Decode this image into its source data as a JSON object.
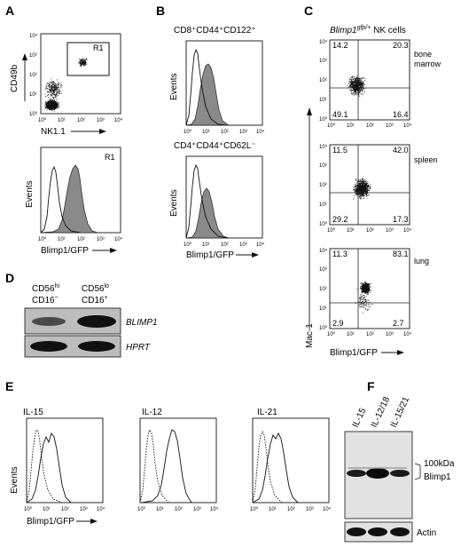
{
  "panels": [
    "A",
    "B",
    "C",
    "D",
    "E",
    "F"
  ],
  "axis_ticks": [
    "10⁰",
    "10¹",
    "10²",
    "10³",
    "10⁴"
  ],
  "panelA": {
    "ylabel": "CD49b",
    "xlabel": "NK1.1",
    "gate": "R1",
    "hist_ylabel": "Events",
    "hist_gate": "R1",
    "hist_xlabel": "Blimp1/GFP"
  },
  "panelB": {
    "title1": "CD8⁺CD44⁺CD122⁺",
    "title2": "CD4⁺CD44⁺CD62L⁻",
    "ylabel": "Events",
    "xlabel": "Blimp1/GFP"
  },
  "panelC": {
    "title_gene": "Blimp1",
    "title_sup": "gfp/+",
    "title_rest": " NK cells",
    "ylabel": "Mac-1",
    "xlabel": "Blimp1/GFP",
    "plots": [
      {
        "tissue": [
          "bone",
          "marrow"
        ],
        "q": [
          "14.2",
          "20.3",
          "49.1",
          "16.4"
        ]
      },
      {
        "tissue": [
          "spleen"
        ],
        "q": [
          "11.5",
          "42.0",
          "29.2",
          "17.3"
        ]
      },
      {
        "tissue": [
          "lung"
        ],
        "q": [
          "11.3",
          "83.1",
          "2.9",
          "2.7"
        ]
      }
    ]
  },
  "panelD": {
    "col1_a": "CD56",
    "col1_a_sup": "hi",
    "col1_b": "CD16",
    "col1_b_sup": "−",
    "col2_a": "CD56",
    "col2_a_sup": "lo",
    "col2_b": "CD16",
    "col2_b_sup": "+",
    "band1": "BLIMP1",
    "band2": "HPRT"
  },
  "panelE": {
    "ylabel": "Events",
    "xlabel": "Blimp1/GFP",
    "conditions": [
      "IL-15",
      "IL-12",
      "IL-21"
    ]
  },
  "panelF": {
    "lanes": [
      "IL-15",
      "IL-12/18",
      "IL-15/21"
    ],
    "marker1": "100kDa",
    "marker2": "Blimp1",
    "loading": "Actin"
  }
}
